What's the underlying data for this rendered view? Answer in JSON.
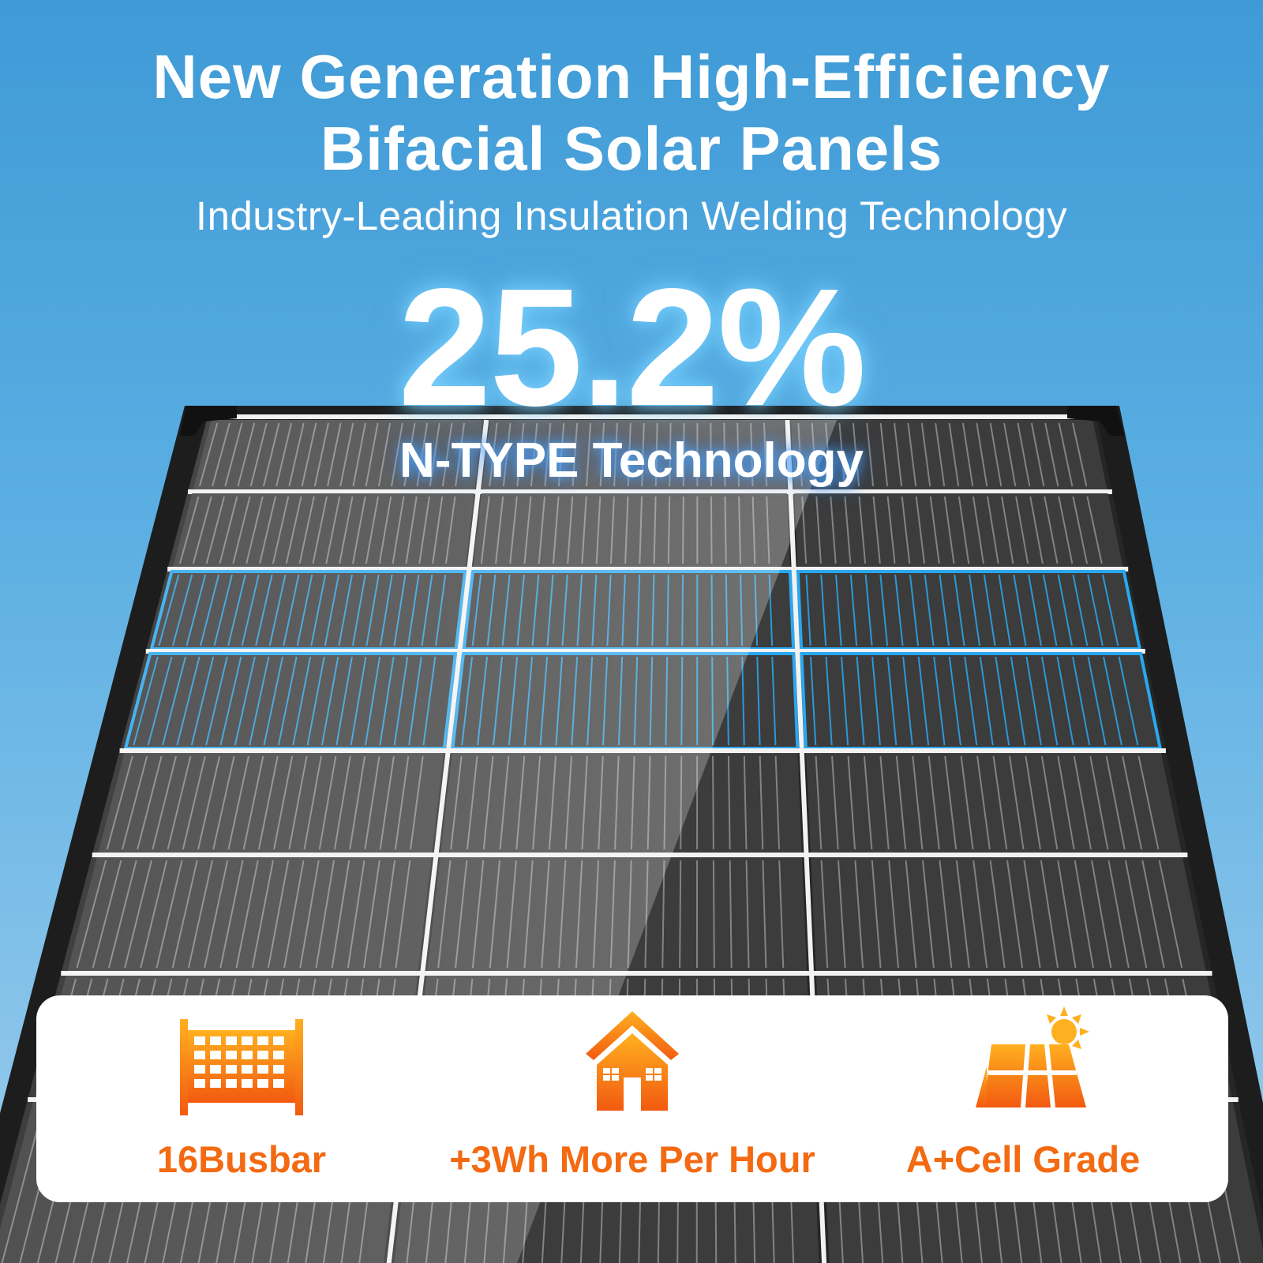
{
  "headline": {
    "title_line1": "New Generation High-Efficiency",
    "title_line2": "Bifacial Solar Panels",
    "subtitle": "Industry-Leading Insulation Welding Technology",
    "efficiency": "25.2%",
    "technology": "N-TYPE Technology"
  },
  "features": [
    {
      "icon": "busbar-grid-icon",
      "label": "16Busbar"
    },
    {
      "icon": "house-icon",
      "label": "+3Wh More Per Hour"
    },
    {
      "icon": "solar-panel-sun-icon",
      "label": "A+Cell Grade"
    }
  ],
  "colors": {
    "sky_top": "#3f9ad6",
    "accent_orange": "#f36a12",
    "highlight_blue": "#2aa8f0"
  }
}
